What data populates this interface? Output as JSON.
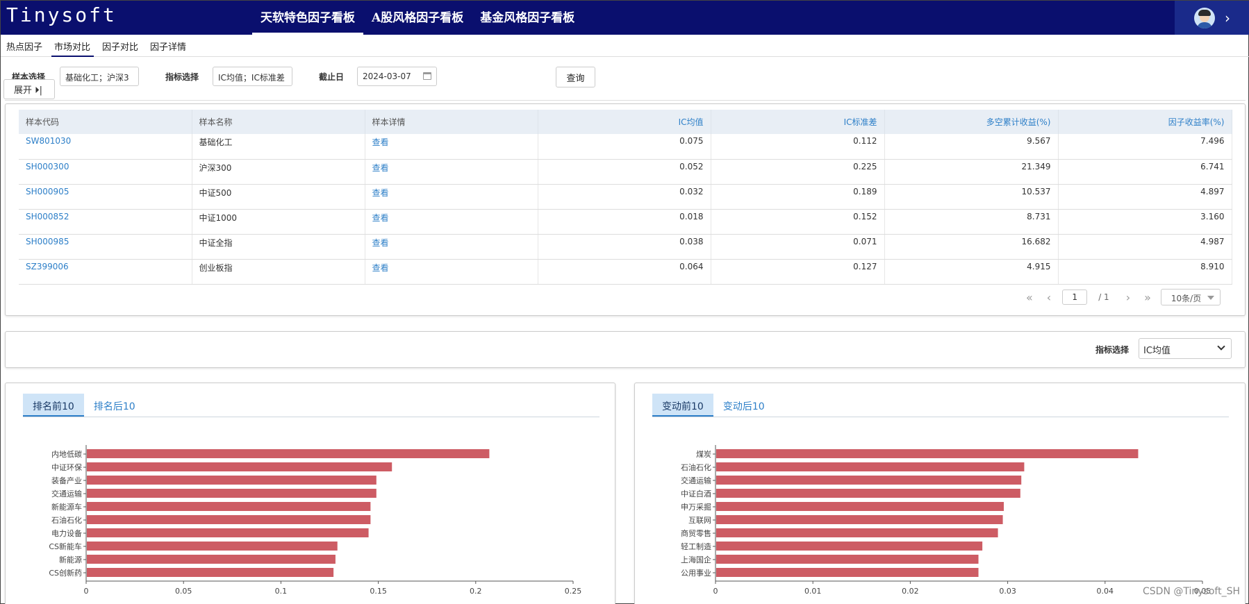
{
  "header": {
    "logo": "Tinysoft",
    "nav": [
      "天软特色因子看板",
      "A股风格因子看板",
      "基金风格因子看板"
    ]
  },
  "subtabs": [
    "热点因子",
    "市场对比",
    "因子对比",
    "因子详情"
  ],
  "filters": {
    "sample_label": "样本选择",
    "sample_value": "基础化工；沪深3",
    "metric_label": "指标选择",
    "metric_value": "IC均值；IC标准差",
    "date_label": "截止日",
    "date_value": "2024-03-07",
    "query_label": "查询",
    "expand_label": "展开 ⏵|"
  },
  "table": {
    "columns": [
      "样本代码",
      "样本名称",
      "样本详情",
      "IC均值",
      "IC标准差",
      "多空累计收益(%)",
      "因子收益率(%)"
    ],
    "rows": [
      {
        "code": "SW801030",
        "name": "基础化工",
        "detail": "查看",
        "ic_mean": "0.075",
        "ic_std": "0.112",
        "ls_return": "9.567",
        "factor_return": "7.496"
      },
      {
        "code": "SH000300",
        "name": "沪深300",
        "detail": "查看",
        "ic_mean": "0.052",
        "ic_std": "0.225",
        "ls_return": "21.349",
        "factor_return": "6.741"
      },
      {
        "code": "SH000905",
        "name": "中证500",
        "detail": "查看",
        "ic_mean": "0.032",
        "ic_std": "0.189",
        "ls_return": "10.537",
        "factor_return": "4.897"
      },
      {
        "code": "SH000852",
        "name": "中证1000",
        "detail": "查看",
        "ic_mean": "0.018",
        "ic_std": "0.152",
        "ls_return": "8.731",
        "factor_return": "3.160"
      },
      {
        "code": "SH000985",
        "name": "中证全指",
        "detail": "查看",
        "ic_mean": "0.038",
        "ic_std": "0.071",
        "ls_return": "16.682",
        "factor_return": "4.987"
      },
      {
        "code": "SZ399006",
        "name": "创业板指",
        "detail": "查看",
        "ic_mean": "0.064",
        "ic_std": "0.127",
        "ls_return": "4.915",
        "factor_return": "8.910"
      }
    ]
  },
  "pager": {
    "first": "«",
    "prev": "‹",
    "page": "1",
    "total": "/ 1",
    "next": "›",
    "last": "»",
    "size": "10条/页"
  },
  "metric_bar": {
    "label": "指标选择",
    "value": "IC均值"
  },
  "panels": {
    "left_tabs": [
      "排名前10",
      "排名后10"
    ],
    "right_tabs": [
      "变动前10",
      "变动后10"
    ]
  },
  "colors": {
    "bar": "#cd5c64",
    "header_bg": "#0a0f6e",
    "link": "#2d7fc8"
  },
  "chart_data": [
    {
      "type": "bar",
      "orientation": "horizontal",
      "categories": [
        "内地低碳",
        "中证环保",
        "装备产业",
        "交通运输",
        "新能源车",
        "石油石化",
        "电力设备",
        "CS新能车",
        "新能源",
        "CS创新药"
      ],
      "values": [
        0.207,
        0.157,
        0.149,
        0.149,
        0.146,
        0.146,
        0.145,
        0.129,
        0.128,
        0.127
      ],
      "xlim": [
        0,
        0.25
      ],
      "xticks": [
        "0",
        "0.05",
        "0.1",
        "0.15",
        "0.2",
        "0.25"
      ]
    },
    {
      "type": "bar",
      "orientation": "horizontal",
      "categories": [
        "煤炭",
        "石油石化",
        "交通运输",
        "中证白酒",
        "申万采掘",
        "互联网",
        "商贸零售",
        "轻工制造",
        "上海国企",
        "公用事业"
      ],
      "values": [
        0.0434,
        0.0317,
        0.0314,
        0.0313,
        0.0296,
        0.0295,
        0.029,
        0.0274,
        0.027,
        0.027
      ],
      "xlim": [
        0,
        0.05
      ],
      "xticks": [
        "0",
        "0.01",
        "0.02",
        "0.03",
        "0.04",
        "0.05"
      ]
    }
  ],
  "watermark": "CSDN @Tinysoft_SH"
}
